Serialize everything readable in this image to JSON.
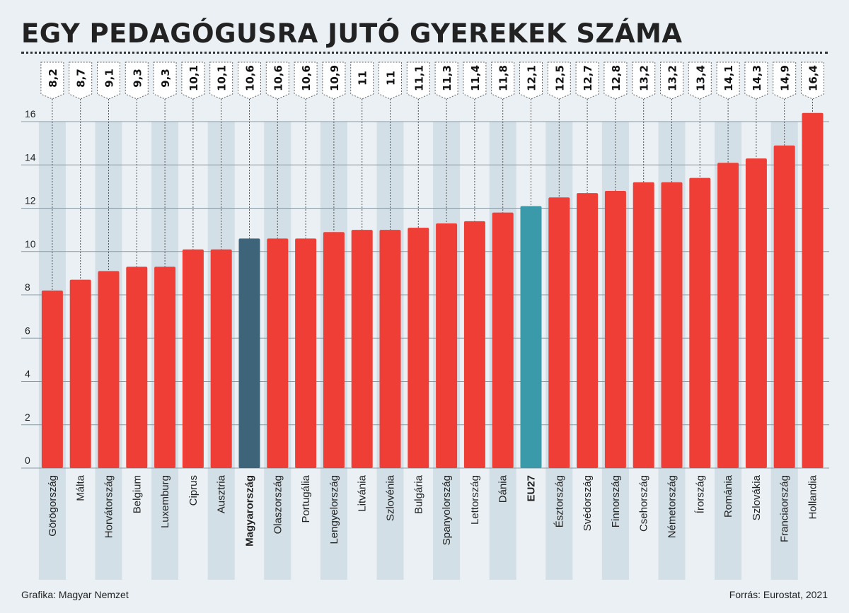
{
  "title": "EGY PEDAGÓGUSRA JUTÓ GYEREKEK SZÁMA",
  "credit": "Grafika: Magyar Nemzet",
  "source": "Forrás: Eurostat, 2021",
  "colors": {
    "bar": "#ef3e36",
    "hungary": "#3e6479",
    "eu": "#3a9aaa",
    "stripe": "#d2dfe6",
    "background": "#eaf0f4"
  },
  "chart_data": {
    "type": "bar",
    "categories": [
      "Görögország",
      "Málta",
      "Horvátország",
      "Belgium",
      "Luxemburg",
      "Ciprus",
      "Ausztria",
      "Magyarország",
      "Olaszország",
      "Portugália",
      "Lengyelország",
      "Litvánia",
      "Szlovénia",
      "Bulgária",
      "Spanyolország",
      "Lettország",
      "Dánia",
      "EU27",
      "Észtország",
      "Svédország",
      "Finnország",
      "Csehország",
      "Németország",
      "Írország",
      "Románia",
      "Szlovákia",
      "Franciaország",
      "Hollandia"
    ],
    "values": [
      8.2,
      8.7,
      9.1,
      9.3,
      9.3,
      10.1,
      10.1,
      10.6,
      10.6,
      10.6,
      10.9,
      11,
      11,
      11.1,
      11.3,
      11.4,
      11.8,
      12.1,
      12.5,
      12.7,
      12.8,
      13.2,
      13.2,
      13.4,
      14.1,
      14.3,
      14.9,
      16.4
    ],
    "value_labels": [
      "8,2",
      "8,7",
      "9,1",
      "9,3",
      "9,3",
      "10,1",
      "10,1",
      "10,6",
      "10,6",
      "10,6",
      "10,9",
      "11",
      "11",
      "11,1",
      "11,3",
      "11,4",
      "11,8",
      "12,1",
      "12,5",
      "12,7",
      "12,8",
      "13,2",
      "13,2",
      "13,4",
      "14,1",
      "14,3",
      "14,9",
      "16,4"
    ],
    "highlight": {
      "Magyarország": "hungary",
      "EU27": "eu"
    },
    "bold_categories": [
      "Magyarország",
      "EU27"
    ],
    "yticks": [
      0,
      2,
      4,
      6,
      8,
      10,
      12,
      14,
      16
    ],
    "ylim": [
      0,
      16
    ],
    "grid": true
  }
}
